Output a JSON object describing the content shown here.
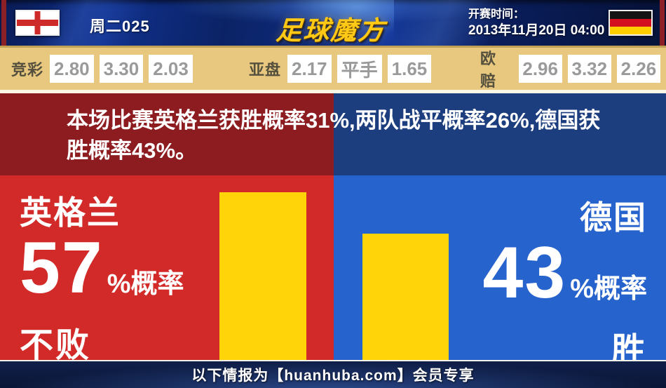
{
  "header": {
    "match_code": "周二025",
    "logo_text": "足球魔方",
    "kickoff_label": "开赛时间：",
    "kickoff_datetime": "2013年11月20日 04:00",
    "home_flag": "england",
    "away_flag": "germany"
  },
  "odds_bar": {
    "groups": [
      {
        "label": "竞彩",
        "values": [
          "2.80",
          "3.30",
          "2.03"
        ]
      },
      {
        "label": "亚盘",
        "values": [
          "2.17",
          "平手",
          "1.65"
        ]
      },
      {
        "label": "欧赔",
        "values": [
          "2.96",
          "3.32",
          "2.26"
        ]
      }
    ]
  },
  "summary": {
    "text": "本场比赛英格兰获胜概率31%,两队战平概率26%,德国获胜概率43%。",
    "home_win_percent": 31,
    "draw_percent": 26,
    "away_win_percent": 43
  },
  "home_panel": {
    "team": "英格兰",
    "percent": "57",
    "suffix": "%概率",
    "outcome": "不败",
    "bar_percent": 57
  },
  "away_panel": {
    "team": "德国",
    "percent": "43",
    "suffix": "%概率",
    "outcome": "胜",
    "bar_percent": 43
  },
  "footer": {
    "text": "以下情报为【huanhuba.com】会员专享"
  },
  "colors": {
    "home_bright_bg": "#d22a28",
    "away_bright_bg": "#2763cd",
    "home_dark_bg": "#8c1c1f",
    "away_dark_bg": "#1d3e7e",
    "bar_fill": "#ffd50a",
    "odds_panel_bg": "#e7c87e",
    "logo_gold": "#ffc916"
  }
}
